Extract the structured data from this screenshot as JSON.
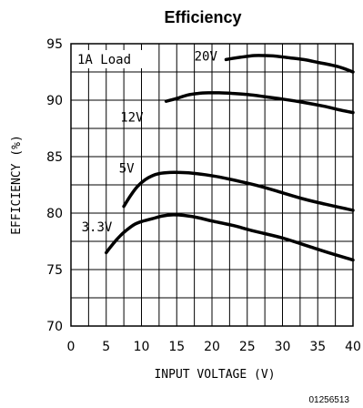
{
  "chart_data": {
    "type": "line",
    "title": "Efficiency",
    "xlabel": "INPUT VOLTAGE (V)",
    "ylabel": "EFFICIENCY (%)",
    "xlim": [
      0,
      40
    ],
    "ylim": [
      70,
      95
    ],
    "x_ticks": [
      "0",
      "5",
      "10",
      "15",
      "20",
      "25",
      "30",
      "35",
      "40"
    ],
    "y_ticks": [
      "70",
      "75",
      "80",
      "85",
      "90",
      "95"
    ],
    "grid": true,
    "annotation": "1A Load",
    "figure_id": "01256513",
    "series": [
      {
        "name": "20V",
        "x": [
          22,
          24,
          26,
          27.5,
          29,
          31,
          33,
          35,
          37,
          38.5,
          40
        ],
        "y": [
          93.6,
          93.8,
          93.95,
          93.95,
          93.9,
          93.75,
          93.6,
          93.35,
          93.1,
          92.85,
          92.5
        ]
      },
      {
        "name": "12V",
        "x": [
          13.5,
          15,
          16.5,
          18,
          19.5,
          21,
          23,
          25,
          27,
          30,
          33,
          36,
          38,
          40
        ],
        "y": [
          89.9,
          90.15,
          90.45,
          90.6,
          90.65,
          90.65,
          90.6,
          90.5,
          90.35,
          90.1,
          89.8,
          89.45,
          89.15,
          88.9
        ]
      },
      {
        "name": "5V",
        "x": [
          7.5,
          8.5,
          9.5,
          10.5,
          11.5,
          12.5,
          14,
          15.5,
          17,
          19,
          21,
          24,
          27,
          30,
          33,
          36,
          40
        ],
        "y": [
          80.6,
          81.6,
          82.4,
          82.95,
          83.3,
          83.5,
          83.6,
          83.6,
          83.55,
          83.4,
          83.2,
          82.8,
          82.35,
          81.8,
          81.25,
          80.8,
          80.25
        ]
      },
      {
        "name": "3.3V",
        "x": [
          5,
          6,
          7,
          8,
          9,
          10,
          11.5,
          13,
          14.5,
          16,
          18,
          20,
          23,
          26,
          30,
          34,
          37,
          40
        ],
        "y": [
          76.5,
          77.3,
          78.0,
          78.55,
          79.0,
          79.25,
          79.5,
          79.75,
          79.85,
          79.8,
          79.6,
          79.3,
          78.9,
          78.4,
          77.8,
          77.0,
          76.4,
          75.85
        ]
      }
    ]
  }
}
